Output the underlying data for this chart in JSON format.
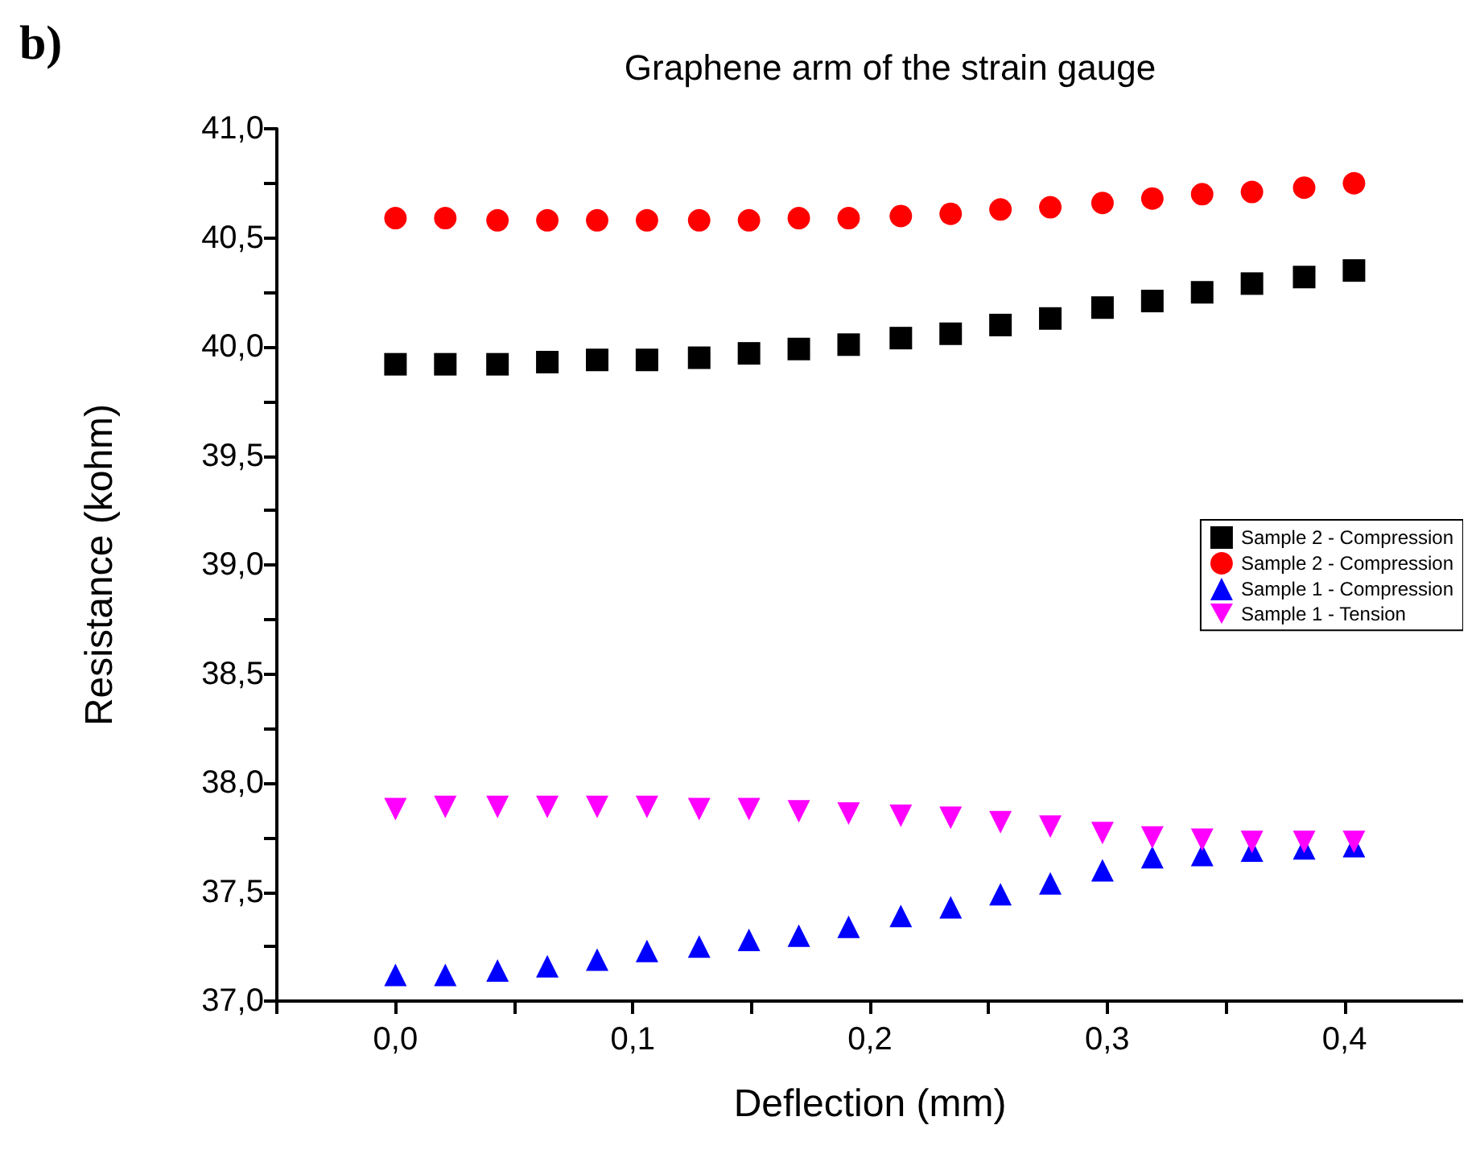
{
  "chart_data": {
    "type": "scatter",
    "title": "Graphene arm of the strain gauge",
    "xlabel": "Deflection (mm)",
    "ylabel": "Resistance (kohm)",
    "annotations": [
      "b)"
    ],
    "x": [
      0,
      0.021,
      0.043,
      0.064,
      0.085,
      0.106,
      0.128,
      0.149,
      0.17,
      0.191,
      0.213,
      0.234,
      0.255,
      0.276,
      0.298,
      0.319,
      0.34,
      0.361,
      0.383,
      0.404
    ],
    "series": [
      {
        "name": "Sample 2 - Compression",
        "color": "#000000",
        "marker": "square",
        "values": [
          39.92,
          39.92,
          39.92,
          39.93,
          39.94,
          39.94,
          39.95,
          39.97,
          39.99,
          40.01,
          40.04,
          40.06,
          40.1,
          40.13,
          40.18,
          40.21,
          40.25,
          40.29,
          40.32,
          40.35
        ]
      },
      {
        "name": "Sample 2 - Compression",
        "color": "#ff0000",
        "marker": "circle",
        "values": [
          40.59,
          40.59,
          40.58,
          40.58,
          40.58,
          40.58,
          40.58,
          40.58,
          40.59,
          40.59,
          40.6,
          40.61,
          40.63,
          40.64,
          40.66,
          40.68,
          40.7,
          40.71,
          40.73,
          40.75
        ]
      },
      {
        "name": "Sample 1 - Compression",
        "color": "#0000ff",
        "marker": "triangle",
        "values": [
          37.12,
          37.12,
          37.14,
          37.16,
          37.19,
          37.23,
          37.25,
          37.28,
          37.3,
          37.34,
          37.39,
          37.43,
          37.49,
          37.54,
          37.6,
          37.66,
          37.67,
          37.69,
          37.7,
          37.71
        ]
      },
      {
        "name": "Sample 1 - Tension",
        "color": "#ff00ff",
        "marker": "triangle-down",
        "values": [
          37.88,
          37.89,
          37.89,
          37.89,
          37.89,
          37.89,
          37.88,
          37.88,
          37.87,
          37.86,
          37.85,
          37.84,
          37.82,
          37.8,
          37.77,
          37.75,
          37.74,
          37.73,
          37.73,
          37.73
        ]
      }
    ],
    "xlim": [
      -0.05,
      0.45
    ],
    "xticks": [
      {
        "value": -0.05,
        "label": null
      },
      {
        "value": 0,
        "label": "0,0"
      },
      {
        "value": 0.05,
        "label": null
      },
      {
        "value": 0.1,
        "label": "0,1"
      },
      {
        "value": 0.15,
        "label": null
      },
      {
        "value": 0.2,
        "label": "0,2"
      },
      {
        "value": 0.25,
        "label": null
      },
      {
        "value": 0.3,
        "label": "0,3"
      },
      {
        "value": 0.35,
        "label": null
      },
      {
        "value": 0.4,
        "label": "0,4"
      }
    ],
    "ylim": [
      37,
      41
    ],
    "yticks": [
      {
        "value": 37,
        "label": "37,0"
      },
      {
        "value": 37.25,
        "label": null
      },
      {
        "value": 37.5,
        "label": "37,5"
      },
      {
        "value": 37.75,
        "label": null
      },
      {
        "value": 38,
        "label": "38,0"
      },
      {
        "value": 38.25,
        "label": null
      },
      {
        "value": 38.5,
        "label": "38,5"
      },
      {
        "value": 38.75,
        "label": null
      },
      {
        "value": 39,
        "label": "39,0"
      },
      {
        "value": 39.25,
        "label": null
      },
      {
        "value": 39.5,
        "label": "39,5"
      },
      {
        "value": 39.75,
        "label": null
      },
      {
        "value": 40,
        "label": "40,0"
      },
      {
        "value": 40.25,
        "label": null
      },
      {
        "value": 40.5,
        "label": "40,5"
      },
      {
        "value": 40.75,
        "label": null
      },
      {
        "value": 41,
        "label": "41,0"
      }
    ],
    "grid": false,
    "legend": "right"
  }
}
